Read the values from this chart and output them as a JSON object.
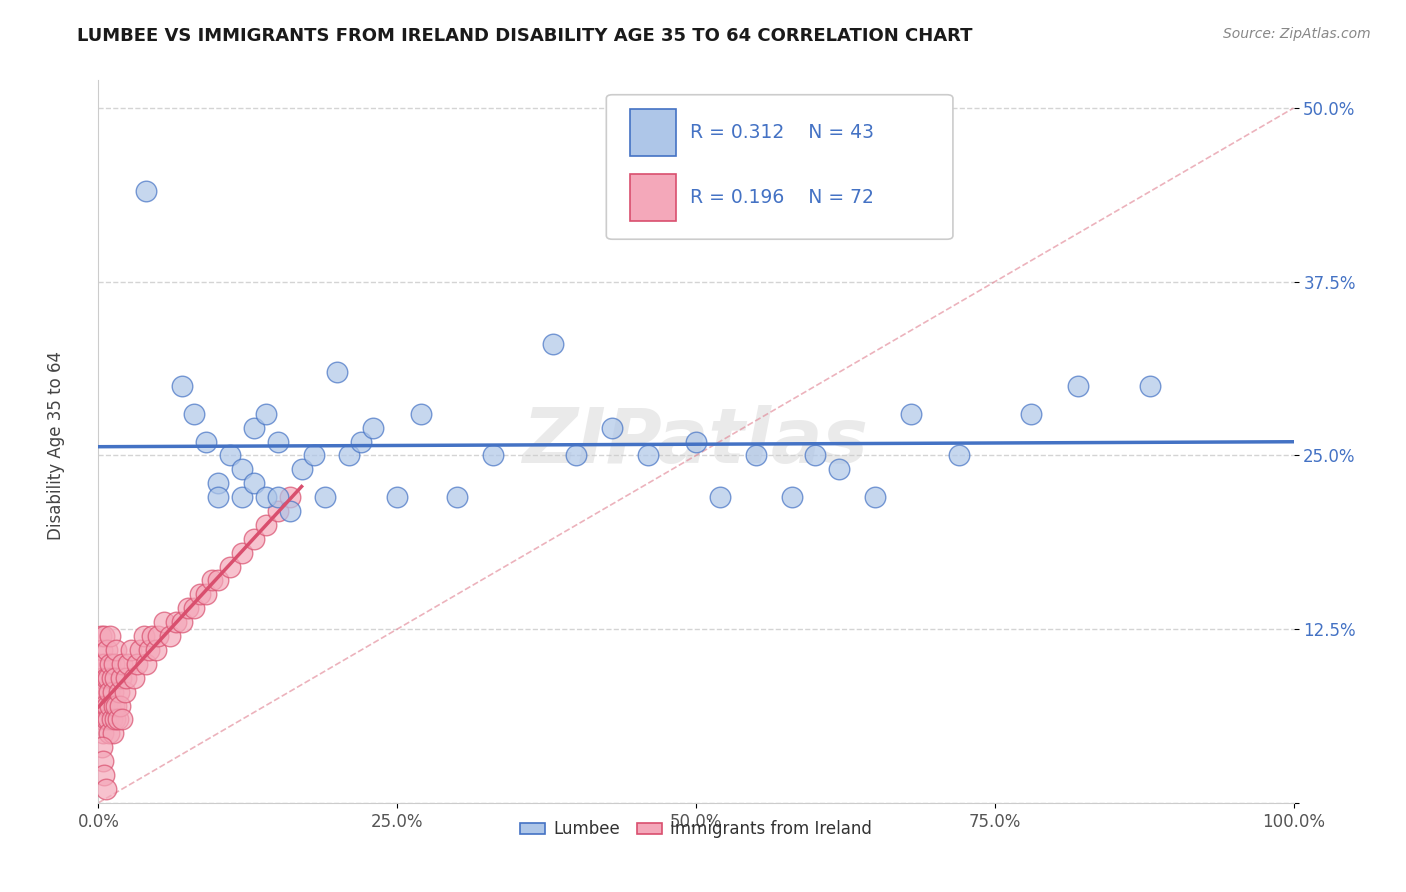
{
  "title": "LUMBEE VS IMMIGRANTS FROM IRELAND DISABILITY AGE 35 TO 64 CORRELATION CHART",
  "source": "Source: ZipAtlas.com",
  "ylabel": "Disability Age 35 to 64",
  "xlim": [
    0.0,
    1.0
  ],
  "ylim": [
    0.0,
    0.52
  ],
  "xticks": [
    0.0,
    0.25,
    0.5,
    0.75,
    1.0
  ],
  "xticklabels": [
    "0.0%",
    "25.0%",
    "50.0%",
    "75.0%",
    "100.0%"
  ],
  "yticks": [
    0.0,
    0.125,
    0.25,
    0.375,
    0.5
  ],
  "yticklabels": [
    "",
    "12.5%",
    "25.0%",
    "37.5%",
    "50.0%"
  ],
  "legend_label1": "Lumbee",
  "legend_label2": "Immigrants from Ireland",
  "R1": 0.312,
  "N1": 43,
  "R2": 0.196,
  "N2": 72,
  "color1": "#aec6e8",
  "color2": "#f4a8ba",
  "line_color1": "#4472c4",
  "line_color2": "#d94f6e",
  "background_color": "#ffffff",
  "grid_color": "#d0d0d0",
  "lumbee_x": [
    0.04,
    0.07,
    0.08,
    0.09,
    0.1,
    0.1,
    0.11,
    0.12,
    0.12,
    0.13,
    0.13,
    0.14,
    0.14,
    0.15,
    0.15,
    0.16,
    0.17,
    0.18,
    0.19,
    0.2,
    0.21,
    0.22,
    0.23,
    0.25,
    0.27,
    0.3,
    0.33,
    0.38,
    0.4,
    0.43,
    0.46,
    0.5,
    0.52,
    0.55,
    0.58,
    0.6,
    0.62,
    0.65,
    0.68,
    0.72,
    0.78,
    0.82,
    0.88
  ],
  "lumbee_y": [
    0.44,
    0.3,
    0.28,
    0.26,
    0.23,
    0.22,
    0.25,
    0.24,
    0.22,
    0.27,
    0.23,
    0.22,
    0.28,
    0.22,
    0.26,
    0.21,
    0.24,
    0.25,
    0.22,
    0.31,
    0.25,
    0.26,
    0.27,
    0.22,
    0.28,
    0.22,
    0.25,
    0.33,
    0.25,
    0.27,
    0.25,
    0.26,
    0.22,
    0.25,
    0.22,
    0.25,
    0.24,
    0.22,
    0.28,
    0.25,
    0.28,
    0.3,
    0.3
  ],
  "ireland_x": [
    0.001,
    0.001,
    0.002,
    0.002,
    0.003,
    0.003,
    0.003,
    0.004,
    0.004,
    0.005,
    0.005,
    0.005,
    0.006,
    0.006,
    0.007,
    0.007,
    0.008,
    0.008,
    0.009,
    0.009,
    0.01,
    0.01,
    0.01,
    0.011,
    0.011,
    0.012,
    0.012,
    0.013,
    0.013,
    0.014,
    0.014,
    0.015,
    0.015,
    0.016,
    0.017,
    0.018,
    0.019,
    0.02,
    0.02,
    0.022,
    0.023,
    0.025,
    0.027,
    0.03,
    0.032,
    0.035,
    0.038,
    0.04,
    0.042,
    0.045,
    0.048,
    0.05,
    0.055,
    0.06,
    0.065,
    0.07,
    0.075,
    0.08,
    0.085,
    0.09,
    0.095,
    0.1,
    0.11,
    0.12,
    0.13,
    0.14,
    0.15,
    0.16,
    0.003,
    0.004,
    0.005,
    0.006
  ],
  "ireland_y": [
    0.08,
    0.1,
    0.07,
    0.12,
    0.06,
    0.09,
    0.11,
    0.05,
    0.08,
    0.07,
    0.1,
    0.12,
    0.06,
    0.09,
    0.07,
    0.11,
    0.06,
    0.09,
    0.05,
    0.08,
    0.07,
    0.1,
    0.12,
    0.06,
    0.09,
    0.05,
    0.08,
    0.07,
    0.1,
    0.06,
    0.09,
    0.07,
    0.11,
    0.06,
    0.08,
    0.07,
    0.09,
    0.06,
    0.1,
    0.08,
    0.09,
    0.1,
    0.11,
    0.09,
    0.1,
    0.11,
    0.12,
    0.1,
    0.11,
    0.12,
    0.11,
    0.12,
    0.13,
    0.12,
    0.13,
    0.13,
    0.14,
    0.14,
    0.15,
    0.15,
    0.16,
    0.16,
    0.17,
    0.18,
    0.19,
    0.2,
    0.21,
    0.22,
    0.04,
    0.03,
    0.02,
    0.01
  ]
}
